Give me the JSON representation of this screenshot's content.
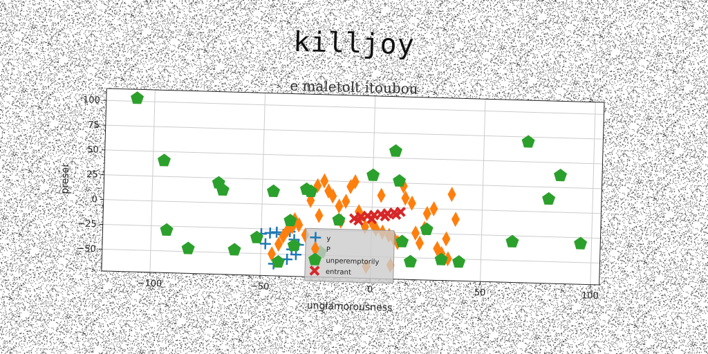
{
  "chart_data": {
    "type": "scatter",
    "title": "killjoy",
    "subtitle": "e maletolt itoubou",
    "xlabel": "unglamorousness",
    "ylabel": "preser",
    "xlim": [
      -122,
      104
    ],
    "ylim": [
      -72,
      112
    ],
    "xticks": [
      -100,
      -50,
      0,
      50,
      100
    ],
    "yticks": [
      -50,
      -25,
      0,
      25,
      50,
      75,
      100
    ],
    "xtick_labels": [
      "−100",
      "−50",
      "0",
      "50",
      "100"
    ],
    "ytick_labels": [
      "−50",
      "−25",
      "0",
      "25",
      "50",
      "75",
      "100"
    ],
    "grid": true,
    "legend_position": "lower-center",
    "series": [
      {
        "name": "y",
        "marker": "plus",
        "color": "#1f77b4",
        "x": [
          -50,
          -46,
          -43,
          -40,
          -37,
          -35,
          -33,
          -34,
          -38,
          -44,
          -48,
          -36
        ],
        "y": [
          -30,
          -29,
          -28,
          -30,
          -27,
          -35,
          -40,
          -50,
          -55,
          -60,
          -40,
          -45
        ]
      },
      {
        "name": "P",
        "marker": "diamond",
        "color": "#ff7f0e",
        "x": [
          -45,
          -42,
          -40,
          -38,
          -35,
          -33,
          -30,
          -28,
          -25,
          -22,
          -20,
          -18,
          -15,
          -12,
          -10,
          -8,
          -5,
          -3,
          0,
          2,
          5,
          8,
          10,
          12,
          15,
          18,
          20,
          22,
          25,
          28,
          30,
          32,
          35,
          36,
          38,
          -14,
          -6,
          4,
          14,
          24,
          34,
          -24,
          -36,
          -2,
          9
        ],
        "y": [
          -50,
          -40,
          -32,
          -25,
          -15,
          -20,
          -30,
          5,
          20,
          25,
          15,
          10,
          0,
          5,
          20,
          25,
          -10,
          -20,
          -15,
          -22,
          -25,
          -28,
          -30,
          -35,
          10,
          5,
          -25,
          -35,
          -5,
          0,
          -40,
          -45,
          -50,
          15,
          -10,
          -15,
          -5,
          12,
          22,
          -20,
          -30,
          -10,
          -22,
          -60,
          -58
        ]
      },
      {
        "name": "unperemptorily",
        "marker": "pentagon",
        "color": "#2ca02c",
        "x": [
          -108,
          -95,
          -93,
          -83,
          -70,
          -68,
          -62,
          -52,
          -45,
          -42,
          -37,
          -35,
          -30,
          -28,
          -23,
          -15,
          0,
          10,
          12,
          14,
          18,
          25,
          32,
          40,
          64,
          70,
          85,
          80,
          95
        ],
        "y": [
          103,
          41,
          -29,
          -47,
          20,
          13,
          -47,
          -34,
          13,
          -58,
          -16,
          -41,
          16,
          14,
          -47,
          -14,
          32,
          57,
          27,
          -34,
          -54,
          -21,
          -51,
          -53,
          -31,
          70,
          37,
          13,
          -31
        ]
      },
      {
        "name": "entrant",
        "marker": "x",
        "color": "#d62728",
        "x": [
          -8,
          -5,
          -2,
          1,
          4,
          7,
          10,
          13,
          -6,
          0,
          6,
          11
        ],
        "y": [
          -12,
          -10,
          -9,
          -8,
          -7,
          -6,
          -5,
          -4,
          -14,
          -12,
          -9,
          -7
        ]
      }
    ]
  }
}
